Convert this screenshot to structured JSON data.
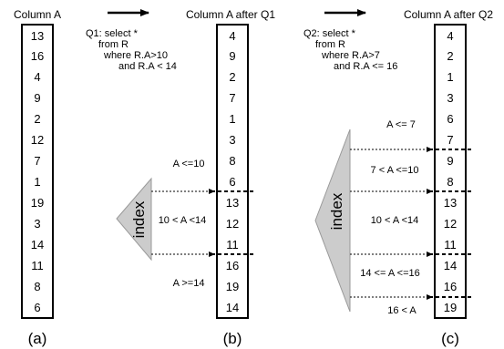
{
  "columns": [
    {
      "title": "Column A",
      "values": [
        "13",
        "16",
        "4",
        "9",
        "2",
        "12",
        "7",
        "1",
        "19",
        "3",
        "14",
        "11",
        "8",
        "6"
      ],
      "caption": "(a)"
    },
    {
      "title": "Column A after Q1",
      "values": [
        "4",
        "9",
        "2",
        "7",
        "1",
        "3",
        "8",
        "6",
        "13",
        "12",
        "11",
        "16",
        "19",
        "14"
      ],
      "caption": "(b)"
    },
    {
      "title": "Column A after Q2",
      "values": [
        "4",
        "2",
        "1",
        "3",
        "6",
        "7",
        "9",
        "8",
        "13",
        "12",
        "11",
        "14",
        "16",
        "19"
      ],
      "caption": "(c)"
    }
  ],
  "queries": {
    "q1": [
      "Q1: select *",
      "from R",
      "where R.A>10",
      "and R.A < 14"
    ],
    "q2": [
      "Q2: select *",
      "from R",
      "where R.A>7",
      "and R.A <= 16"
    ]
  },
  "index_label": "index",
  "ranges_b": [
    "A <=10",
    "10 < A <14",
    "A >=14"
  ],
  "ranges_c": [
    "A <= 7",
    "7 < A <=10",
    "10 < A <14",
    "14 <= A <=16",
    "16 < A"
  ],
  "colors": {
    "stroke": "#000000",
    "index_fill": "#cccccc",
    "index_stroke": "#999999"
  }
}
